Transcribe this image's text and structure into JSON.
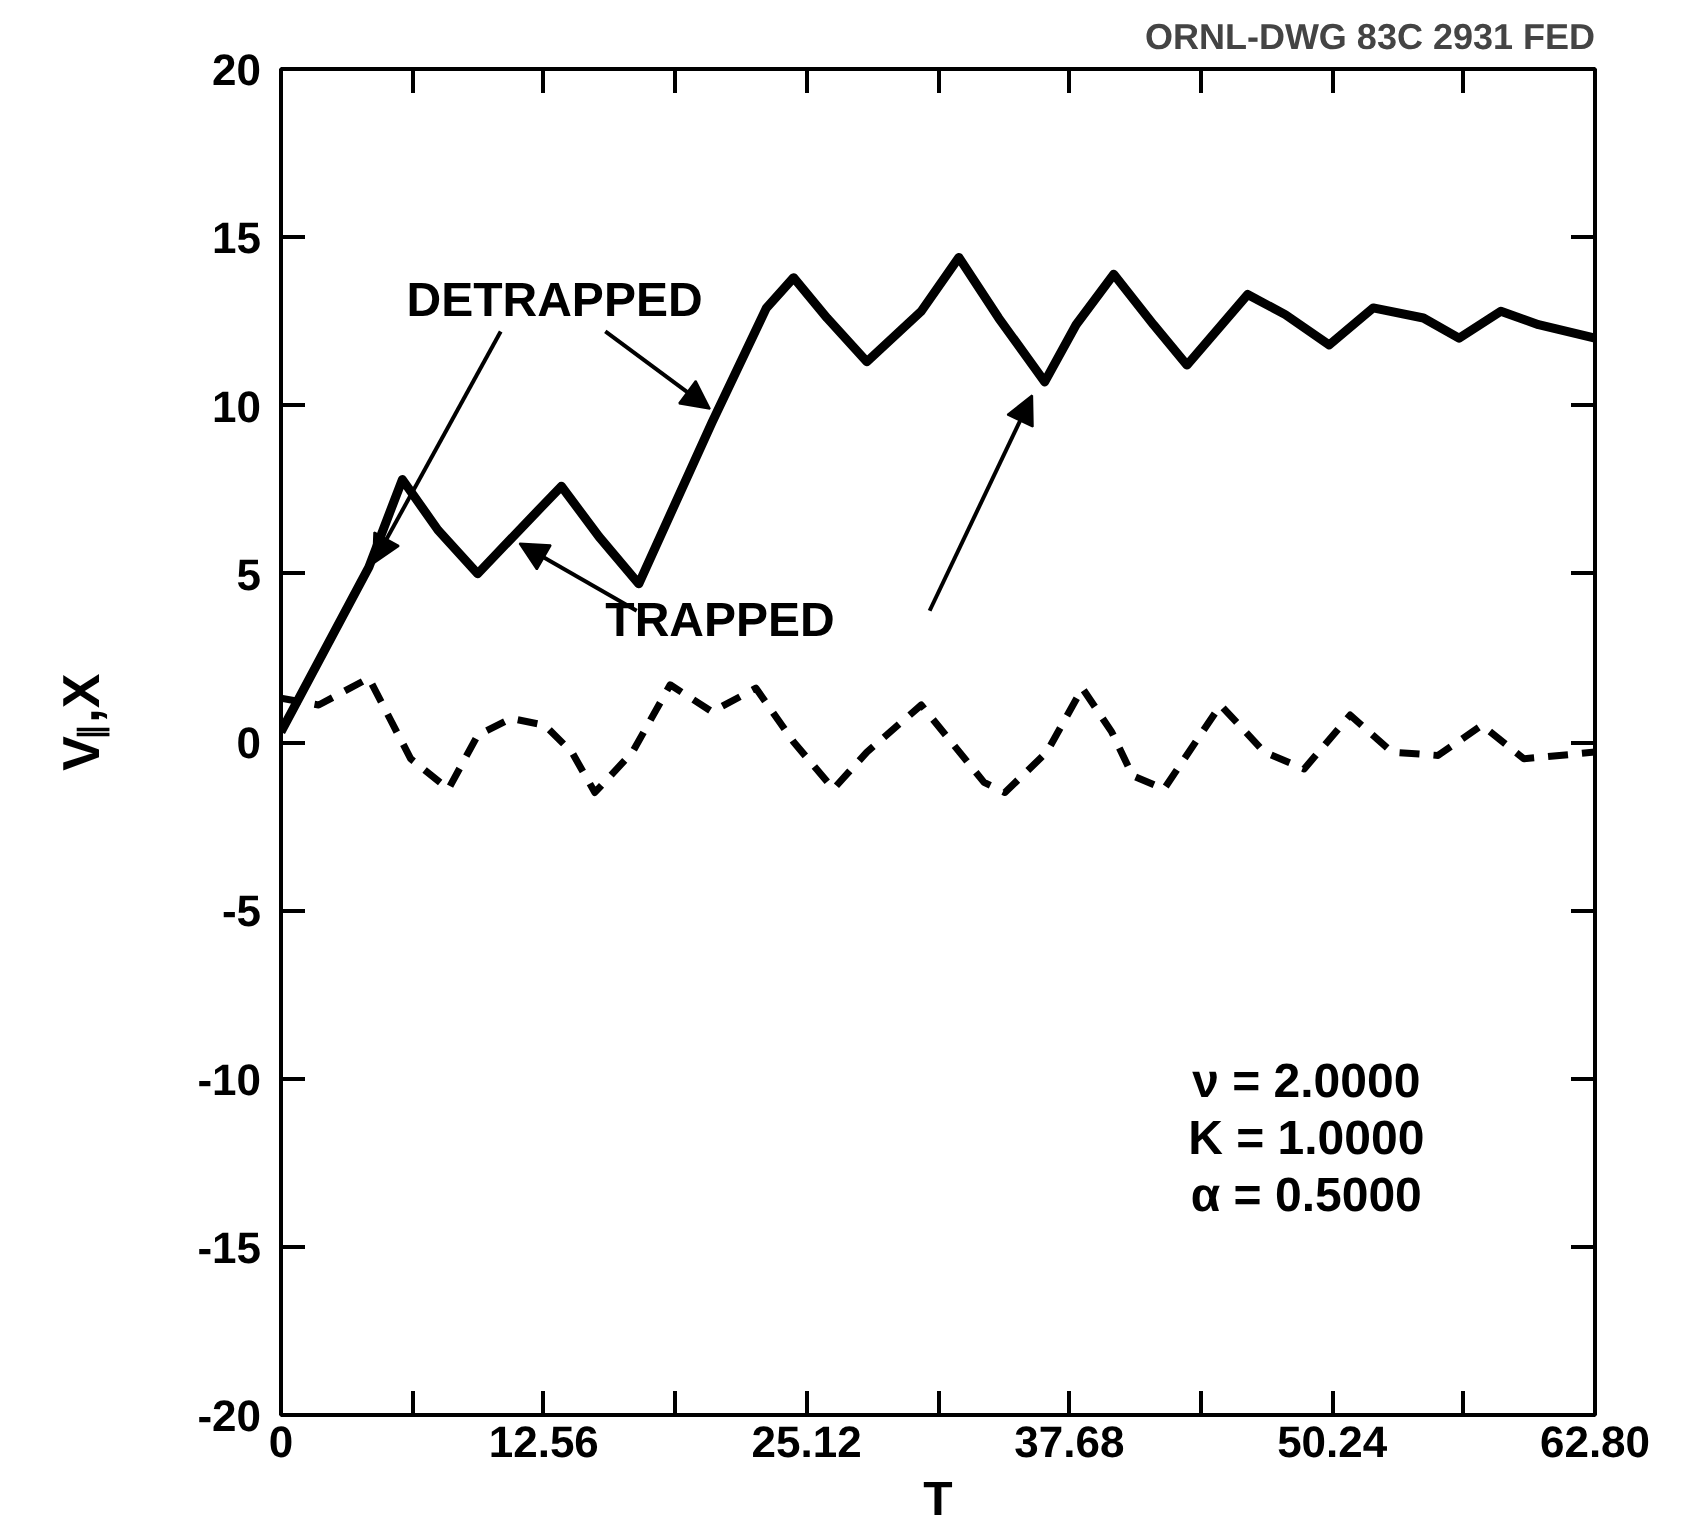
{
  "chart_data": {
    "type": "line",
    "xlabel": "T",
    "ylabel": "V$_{∥}$,X",
    "xlim": [
      0,
      62.8
    ],
    "ylim": [
      -20,
      20
    ],
    "xticks": [
      0,
      {
        "value": 6.28,
        "label": null
      },
      12.56,
      {
        "value": 18.84,
        "label": null
      },
      25.12,
      {
        "value": 31.4,
        "label": null
      },
      37.68,
      {
        "value": 43.96,
        "label": null
      },
      50.24,
      {
        "value": 56.52,
        "label": null
      },
      {
        "value": 62.8,
        "label": "62.80"
      }
    ],
    "yticks": [
      -20,
      -15,
      -10,
      -5,
      0,
      5,
      10,
      15,
      20
    ],
    "grid": false,
    "series": [
      {
        "color": "#000000",
        "line_style": "solid",
        "x": [
          0,
          4.2,
          5.8,
          7.5,
          9.4,
          11.7,
          13.4,
          15.2,
          17.1,
          20.6,
          23.2,
          24.5,
          26.1,
          28.0,
          30.6,
          32.4,
          34.3,
          36.5,
          38.0,
          39.8,
          41.7,
          43.3,
          46.2,
          48.0,
          50.1,
          52.2,
          54.6,
          56.3,
          58.3,
          60.1,
          62.8
        ],
        "values": [
          0.3,
          5.2,
          7.8,
          6.3,
          5.0,
          6.5,
          7.6,
          6.1,
          4.7,
          9.5,
          12.9,
          13.8,
          12.6,
          11.3,
          12.8,
          14.4,
          12.6,
          10.7,
          12.4,
          13.9,
          12.4,
          11.2,
          13.3,
          12.7,
          11.8,
          12.9,
          12.6,
          12.0,
          12.8,
          12.4,
          12.0
        ]
      },
      {
        "color": "#000000",
        "line_style": "dashed",
        "x": [
          0,
          1.8,
          4.2,
          6.2,
          8.0,
          9.4,
          11.0,
          12.6,
          13.9,
          15.0,
          16.8,
          18.6,
          20.6,
          22.7,
          24.5,
          26.4,
          28.0,
          30.6,
          33.6,
          34.6,
          36.6,
          38.3,
          39.7,
          40.7,
          42.2,
          44.9,
          47.0,
          48.9,
          51.1,
          53.1,
          55.3,
          57.4,
          59.4,
          62.8
        ],
        "values": [
          1.3,
          1.1,
          1.9,
          -0.5,
          -1.4,
          0.2,
          0.7,
          0.5,
          -0.3,
          -1.5,
          -0.3,
          1.7,
          0.9,
          1.6,
          0.0,
          -1.4,
          -0.3,
          1.1,
          -1.2,
          -1.5,
          -0.3,
          1.6,
          0.3,
          -1.0,
          -1.4,
          1.1,
          -0.3,
          -0.8,
          0.8,
          -0.3,
          -0.4,
          0.5,
          -0.5,
          -0.3
        ]
      }
    ],
    "annotations": [
      "ORNL-DWG 83C 2931 FED",
      {
        "text": "DETRAPPED",
        "x": 4.4,
        "y": 5.3
      },
      {
        "text": "TRAPPED",
        "x": 11.4,
        "y": 5.9
      },
      "ν = 2.0000",
      "K = 1.0000",
      "α = 0.5000"
    ]
  }
}
